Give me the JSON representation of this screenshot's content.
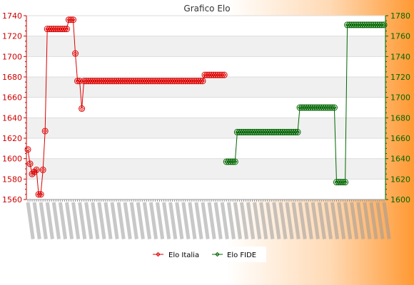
{
  "chart_data": {
    "type": "line",
    "title": "Grafico Elo",
    "xlabel": "",
    "ylabel_left": "",
    "ylabel_right": "",
    "y_left": {
      "ylim": [
        1560,
        1740
      ],
      "ticks": [
        1560,
        1580,
        1600,
        1620,
        1640,
        1660,
        1680,
        1700,
        1720,
        1740
      ]
    },
    "y_right": {
      "ylim": [
        1600,
        1780
      ],
      "ticks": [
        1600,
        1620,
        1640,
        1660,
        1680,
        1700,
        1720,
        1740,
        1760,
        1780
      ]
    },
    "grid": true,
    "legend": "bottom-center",
    "colors": {
      "italia": "#dd0000",
      "fide": "#006600",
      "axis_left": "#cc0000",
      "axis_right": "#006600",
      "band": "#f0f0f0",
      "bg_left": "#ffffff",
      "bg_right": "#ff9933"
    },
    "x_axis_note": "dense rotated date tick labels, illegible in the screenshot",
    "series": [
      {
        "name": "Elo Italia",
        "axis": "left",
        "values": [
          1609,
          1595,
          1585,
          1587,
          1589,
          1565,
          1565,
          1589,
          1627,
          1727,
          1727,
          1727,
          1727,
          1727,
          1727,
          1727,
          1727,
          1727,
          1727,
          1736,
          1736,
          1736,
          1703,
          1676,
          1676,
          1649,
          1676,
          1676,
          1676,
          1676,
          1676,
          1676,
          1676,
          1676,
          1676,
          1676,
          1676,
          1676,
          1676,
          1676,
          1676,
          1676,
          1676,
          1676,
          1676,
          1676,
          1676,
          1676,
          1676,
          1676,
          1676,
          1676,
          1676,
          1676,
          1676,
          1676,
          1676,
          1676,
          1676,
          1676,
          1676,
          1676,
          1676,
          1676,
          1676,
          1676,
          1676,
          1676,
          1676,
          1676,
          1676,
          1676,
          1676,
          1676,
          1676,
          1676,
          1676,
          1676,
          1676,
          1676,
          1676,
          1676,
          1682,
          1682,
          1682,
          1682,
          1682,
          1682,
          1682,
          1682,
          1682,
          1682
        ]
      },
      {
        "name": "Elo FIDE",
        "axis": "right",
        "start_index": 92,
        "values": [
          1637,
          1637,
          1637,
          1637,
          1637,
          1666,
          1666,
          1666,
          1666,
          1666,
          1666,
          1666,
          1666,
          1666,
          1666,
          1666,
          1666,
          1666,
          1666,
          1666,
          1666,
          1666,
          1666,
          1666,
          1666,
          1666,
          1666,
          1666,
          1666,
          1666,
          1666,
          1666,
          1666,
          1666,
          1690,
          1690,
          1690,
          1690,
          1690,
          1690,
          1690,
          1690,
          1690,
          1690,
          1690,
          1690,
          1690,
          1690,
          1690,
          1690,
          1690,
          1617,
          1617,
          1617,
          1617,
          1617,
          1771,
          1771,
          1771,
          1771,
          1771,
          1771,
          1771,
          1771,
          1771,
          1771,
          1771,
          1771,
          1771,
          1771,
          1771,
          1771,
          1771,
          1771
        ]
      }
    ],
    "total_points": 166
  }
}
